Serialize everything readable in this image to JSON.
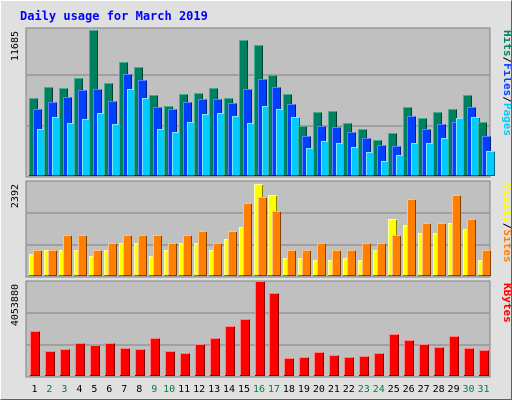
{
  "chart_data": [
    {
      "type": "bar",
      "title": "Daily usage for March 2019",
      "panel": "pages-files-hits",
      "ymax_label": "11685",
      "ylim": [
        0,
        11685
      ],
      "grid": true,
      "legend": [
        {
          "label": "Pages",
          "color": "#00ccff"
        },
        {
          "label": "Files",
          "color": "#0040ff"
        },
        {
          "label": "Hits",
          "color": "#008060"
        }
      ],
      "legend_separator": "/",
      "categories": [
        "1",
        "2",
        "3",
        "4",
        "5",
        "6",
        "7",
        "8",
        "9",
        "10",
        "11",
        "12",
        "13",
        "14",
        "15",
        "16",
        "17",
        "18",
        "19",
        "20",
        "21",
        "22",
        "23",
        "24",
        "25",
        "26",
        "27",
        "28",
        "29",
        "30",
        "31"
      ],
      "series": [
        {
          "name": "Hits",
          "values": [
            6200,
            7100,
            7000,
            7800,
            11600,
            7400,
            9100,
            8700,
            6400,
            5600,
            6500,
            6600,
            7000,
            6200,
            10800,
            10400,
            8000,
            6500,
            4000,
            5100,
            5200,
            4200,
            3700,
            2900,
            3400,
            5500,
            4600,
            5100,
            5300,
            6400,
            4300
          ]
        },
        {
          "name": "Files",
          "values": [
            5300,
            5900,
            6300,
            6800,
            6900,
            6000,
            8100,
            7600,
            5500,
            5300,
            5900,
            6100,
            6100,
            5800,
            6900,
            7700,
            7100,
            5700,
            3200,
            4000,
            3900,
            3500,
            3000,
            2500,
            2400,
            4800,
            3700,
            4100,
            4300,
            5500,
            3200
          ]
        },
        {
          "name": "Pages",
          "values": [
            3700,
            4700,
            4200,
            4500,
            5000,
            4100,
            6900,
            6200,
            3700,
            3500,
            4300,
            4900,
            5000,
            4800,
            4200,
            5600,
            5300,
            4700,
            2200,
            2800,
            2600,
            2300,
            1900,
            1200,
            1700,
            2600,
            2600,
            3000,
            4600,
            4700,
            2000
          ]
        }
      ]
    },
    {
      "type": "bar",
      "panel": "sites-visits",
      "ymax_label": "2392",
      "ylim": [
        0,
        2392
      ],
      "grid": true,
      "legend": [
        {
          "label": "Sites",
          "color": "#ff8000"
        },
        {
          "label": "Visits",
          "color": "#ffff00"
        }
      ],
      "legend_separator": "/",
      "categories": [
        "1",
        "2",
        "3",
        "4",
        "5",
        "6",
        "7",
        "8",
        "9",
        "10",
        "11",
        "12",
        "13",
        "14",
        "15",
        "16",
        "17",
        "18",
        "19",
        "20",
        "21",
        "22",
        "23",
        "24",
        "25",
        "26",
        "27",
        "28",
        "29",
        "30",
        "31"
      ],
      "series": [
        {
          "name": "Visits",
          "values": [
            550,
            650,
            650,
            650,
            500,
            650,
            850,
            850,
            500,
            650,
            850,
            850,
            650,
            950,
            1250,
            2350,
            2050,
            450,
            450,
            400,
            400,
            450,
            400,
            650,
            1450,
            1300,
            1100,
            1100,
            1350,
            1200,
            400
          ]
        },
        {
          "name": "Sites",
          "values": [
            650,
            650,
            1050,
            1050,
            650,
            850,
            1050,
            1050,
            1050,
            850,
            1050,
            1150,
            850,
            1150,
            1850,
            2000,
            1650,
            650,
            650,
            850,
            650,
            650,
            850,
            850,
            1050,
            1950,
            1350,
            1350,
            2050,
            1450,
            650
          ]
        }
      ]
    },
    {
      "type": "bar",
      "panel": "kbytes",
      "ymax_label": "4053880",
      "ylim": [
        0,
        4053880
      ],
      "grid": true,
      "legend": [
        {
          "label": "KBytes",
          "color": "#ff0000"
        }
      ],
      "categories": [
        "1",
        "2",
        "3",
        "4",
        "5",
        "6",
        "7",
        "8",
        "9",
        "10",
        "11",
        "12",
        "13",
        "14",
        "15",
        "16",
        "17",
        "18",
        "19",
        "20",
        "21",
        "22",
        "23",
        "24",
        "25",
        "26",
        "27",
        "28",
        "29",
        "30",
        "31"
      ],
      "series": [
        {
          "name": "KBytes",
          "values": [
            1950000,
            1080000,
            1150000,
            1420000,
            1340000,
            1420000,
            1200000,
            1160000,
            1650000,
            1080000,
            1010000,
            1390000,
            1620000,
            2140000,
            2470000,
            4080000,
            3590000,
            790000,
            810000,
            1040000,
            900000,
            830000,
            860000,
            1000000,
            1820000,
            1570000,
            1380000,
            1250000,
            1720000,
            1190000,
            1130000
          ]
        }
      ]
    }
  ],
  "day_labels": {
    "weekend_color": "#008040",
    "weekday_color": "#000000",
    "weekend_days": [
      2,
      3,
      9,
      10,
      16,
      17,
      23,
      24,
      30,
      31
    ]
  }
}
